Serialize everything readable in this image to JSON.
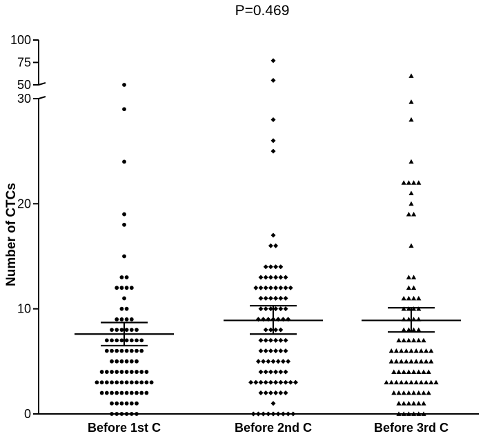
{
  "chart_data": {
    "type": "scatter",
    "title": "P=0.469",
    "xlabel": "",
    "ylabel": "Number of CTCs",
    "y_axis": {
      "lower_segment": {
        "range": [
          0,
          30
        ],
        "ticks": [
          "0",
          "10",
          "20",
          "30"
        ]
      },
      "upper_segment": {
        "range": [
          50,
          100
        ],
        "ticks": [
          "50",
          "75",
          "100"
        ]
      },
      "broken": true
    },
    "categories": [
      "Before 1st C",
      "Before 2nd C",
      "Before 3rd C"
    ],
    "markers": [
      "circle",
      "diamond",
      "triangle"
    ],
    "series": [
      {
        "name": "Before 1st C",
        "marker": "circle",
        "values": [
          0,
          0,
          0,
          0,
          0,
          0,
          1,
          1,
          1,
          1,
          1,
          1,
          2,
          2,
          2,
          2,
          2,
          2,
          2,
          2,
          2,
          2,
          3,
          3,
          3,
          3,
          3,
          3,
          3,
          3,
          3,
          3,
          3,
          3,
          4,
          4,
          4,
          4,
          4,
          4,
          4,
          4,
          4,
          4,
          5,
          5,
          5,
          5,
          5,
          5,
          6,
          6,
          6,
          6,
          6,
          6,
          6,
          6,
          7,
          7,
          7,
          7,
          7,
          7,
          7,
          7,
          8,
          8,
          8,
          8,
          8,
          8,
          9,
          9,
          9,
          9,
          10,
          10,
          11,
          12,
          12,
          12,
          12,
          13,
          13,
          15,
          18,
          19,
          24,
          29,
          50
        ],
        "mean": 7.6,
        "sem_low": 6.5,
        "sem_high": 8.7
      },
      {
        "name": "Before 2nd C",
        "marker": "diamond",
        "values": [
          0,
          0,
          0,
          0,
          0,
          0,
          0,
          0,
          0,
          1,
          2,
          2,
          2,
          2,
          2,
          2,
          3,
          3,
          3,
          3,
          3,
          3,
          3,
          3,
          3,
          3,
          4,
          4,
          4,
          4,
          4,
          4,
          5,
          5,
          5,
          5,
          5,
          5,
          5,
          6,
          6,
          6,
          6,
          6,
          6,
          7,
          7,
          7,
          7,
          7,
          7,
          8,
          8,
          8,
          8,
          9,
          9,
          9,
          9,
          9,
          9,
          9,
          10,
          10,
          10,
          10,
          10,
          10,
          11,
          11,
          11,
          11,
          11,
          11,
          12,
          12,
          12,
          12,
          12,
          12,
          12,
          12,
          13,
          13,
          13,
          13,
          13,
          13,
          14,
          14,
          14,
          14,
          16,
          16,
          17,
          25,
          26,
          28,
          55,
          77
        ],
        "mean": 8.9,
        "sem_low": 7.6,
        "sem_high": 10.3
      },
      {
        "name": "Before 3rd C",
        "marker": "triangle",
        "values": [
          0,
          0,
          0,
          0,
          0,
          0,
          1,
          1,
          1,
          1,
          1,
          1,
          2,
          2,
          2,
          2,
          2,
          2,
          2,
          2,
          3,
          3,
          3,
          3,
          3,
          3,
          3,
          3,
          3,
          3,
          3,
          4,
          4,
          4,
          4,
          4,
          4,
          4,
          4,
          5,
          5,
          5,
          5,
          5,
          5,
          5,
          5,
          5,
          6,
          6,
          6,
          6,
          6,
          6,
          6,
          6,
          6,
          7,
          7,
          7,
          7,
          7,
          7,
          8,
          8,
          8,
          8,
          9,
          9,
          9,
          9,
          10,
          10,
          10,
          10,
          11,
          11,
          11,
          11,
          12,
          12,
          13,
          13,
          16,
          19,
          19,
          20,
          21,
          22,
          22,
          22,
          22,
          24,
          28,
          31,
          60
        ],
        "mean": 8.9,
        "sem_low": 7.8,
        "sem_high": 10.1
      }
    ]
  }
}
